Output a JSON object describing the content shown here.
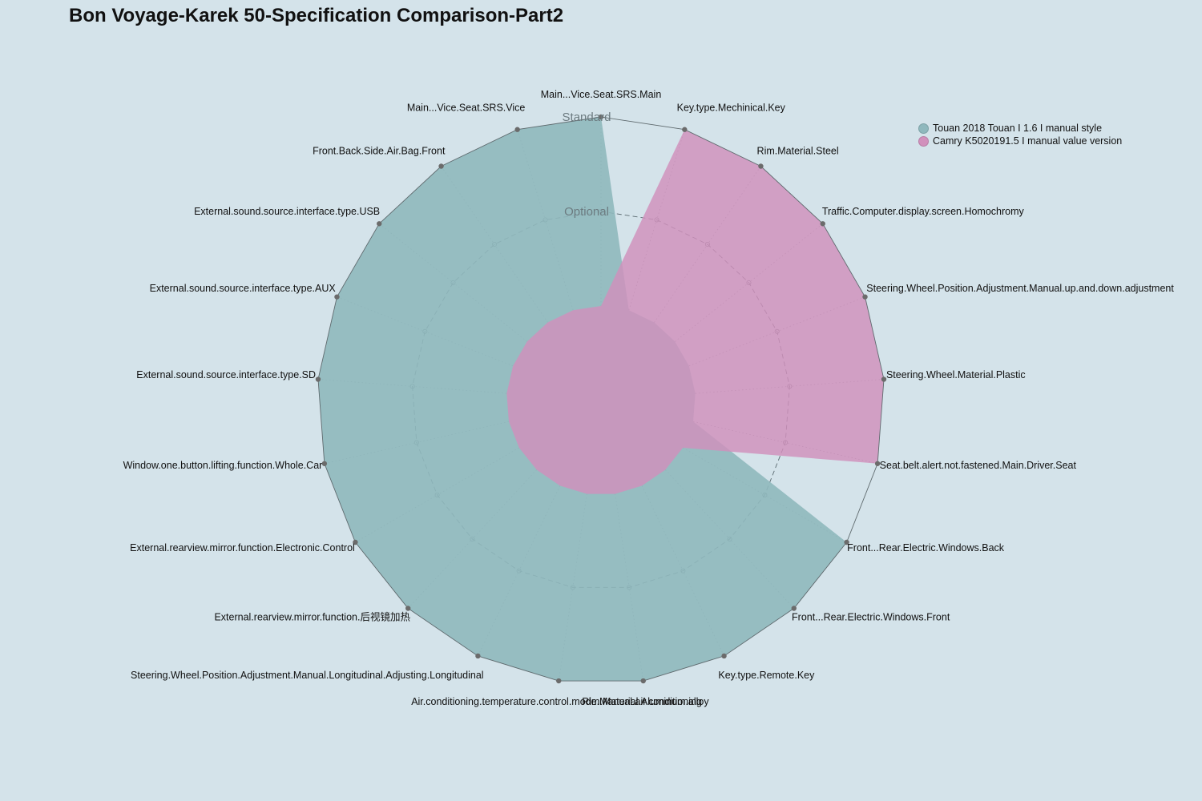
{
  "chart_data": {
    "type": "radar",
    "title": "Bon Voyage-Karek 50-Specification Comparison-Part2",
    "levels": [
      "",
      "Optional",
      "Standard"
    ],
    "categories": [
      "Main...Vice.Seat.SRS.Main",
      "Key.type.Mechinical.Key",
      "Rim.Material.Steel",
      "Traffic.Computer.display.screen.Homochromy",
      "Steering.Wheel.Position.Adjustment.Manual.up.and.down.adjustment",
      "Steering.Wheel.Material.Plastic",
      "Seat.belt.alert.not.fastened.Main.Driver.Seat",
      "Front...Rear.Electric.Windows.Back",
      "Front...Rear.Electric.Windows.Front",
      "Key.type.Remote.Key",
      "Rim.Material.Aluminum.alloy",
      "Air.conditioning.temperature.control.mode.Manual.air.conditioning",
      "Steering.Wheel.Position.Adjustment.Manual.Longitudinal.Adjusting.Longitudinal",
      "External.rearview.mirror.function.后视镜加热",
      "External.rearview.mirror.function.Electronic.Control",
      "Window.one.button.lifting.function.Whole.Car",
      "External.sound.source.interface.type.SD",
      "External.sound.source.interface.type.AUX",
      "External.sound.source.interface.type.USB",
      "Front.Back.Side.Air.Bag.Front",
      "Main...Vice.Seat.SRS.Vice"
    ],
    "series": [
      {
        "name": "Touan 2018 Touan I 1.6 I manual style",
        "color": "#8fb8bd",
        "values": [
          2,
          0,
          0,
          0,
          0,
          0,
          0,
          2,
          2,
          2,
          2,
          2,
          2,
          2,
          2,
          2,
          2,
          2,
          2,
          2,
          2
        ]
      },
      {
        "name": "Camry K5020191.5 I manual value version",
        "color": "#d190bc",
        "values": [
          0,
          2,
          2,
          2,
          2,
          2,
          2,
          0,
          0,
          0,
          0,
          0,
          0,
          0,
          0,
          0,
          0,
          0,
          0,
          0,
          0
        ]
      }
    ],
    "rmin": 0,
    "rmax": 2,
    "legend_position": "top-right"
  }
}
